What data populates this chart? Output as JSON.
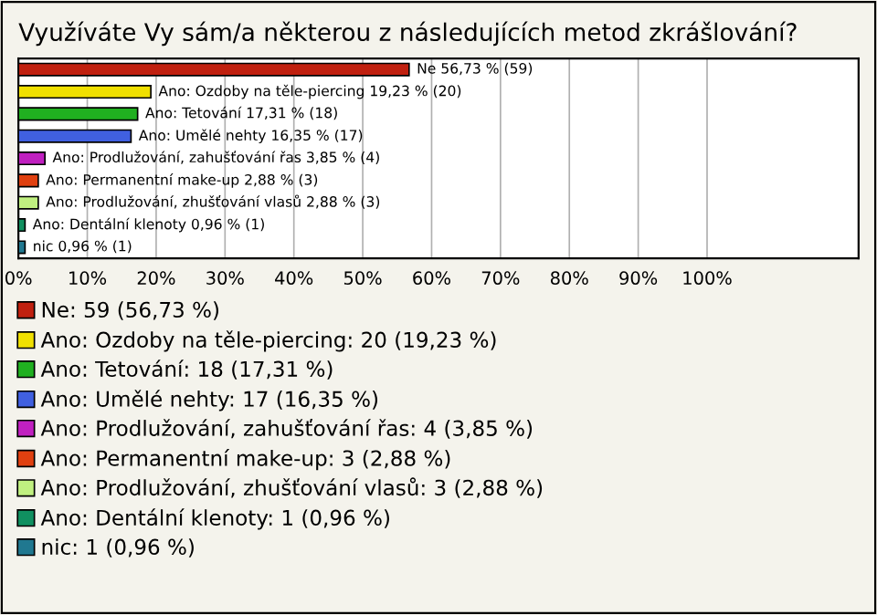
{
  "chart_data": {
    "type": "bar",
    "orientation": "horizontal",
    "title": "Využíváte Vy sám/a některou z následujících metod zkrášlování?",
    "categories": [
      null,
      null,
      null,
      null,
      null,
      null,
      null,
      null,
      null
    ],
    "series": [
      {
        "name": "Ne: 59 (56,73 %)",
        "color": "#c0200f",
        "values": [
          56.73,
          null,
          null,
          null,
          null,
          null,
          null,
          null,
          null
        ],
        "value_labels": [
          "Ne 56,73 % (59)",
          null,
          null,
          null,
          null,
          null,
          null,
          null,
          null
        ]
      },
      {
        "name": "Ano: Ozdoby na těle-piercing: 20 (19,23 %)",
        "color": "#f0e000",
        "values": [
          null,
          19.23,
          null,
          null,
          null,
          null,
          null,
          null,
          null
        ],
        "value_labels": [
          null,
          "Ano: Ozdoby na těle-piercing 19,23 % (20)",
          null,
          null,
          null,
          null,
          null,
          null,
          null
        ]
      },
      {
        "name": "Ano: Tetování: 18 (17,31 %)",
        "color": "#20b020",
        "values": [
          null,
          null,
          17.31,
          null,
          null,
          null,
          null,
          null,
          null
        ],
        "value_labels": [
          null,
          null,
          "Ano: Tetování 17,31 % (18)",
          null,
          null,
          null,
          null,
          null,
          null
        ]
      },
      {
        "name": "Ano: Umělé nehty: 17 (16,35 %)",
        "color": "#4060e0",
        "values": [
          null,
          null,
          null,
          16.35,
          null,
          null,
          null,
          null,
          null
        ],
        "value_labels": [
          null,
          null,
          null,
          "Ano: Umělé nehty 16,35 % (17)",
          null,
          null,
          null,
          null,
          null
        ]
      },
      {
        "name": "Ano: Prodlužování, zahušťování řas: 4 (3,85 %)",
        "color": "#c020c0",
        "values": [
          null,
          null,
          null,
          null,
          3.85,
          null,
          null,
          null,
          null
        ],
        "value_labels": [
          null,
          null,
          null,
          null,
          "Ano: Prodlužování, zahušťování řas 3,85 % (4)",
          null,
          null,
          null,
          null
        ]
      },
      {
        "name": "Ano: Permanentní make-up: 3 (2,88 %)",
        "color": "#e04010",
        "values": [
          null,
          null,
          null,
          null,
          null,
          2.88,
          null,
          null,
          null
        ],
        "value_labels": [
          null,
          null,
          null,
          null,
          null,
          "Ano: Permanentní make-up 2,88 % (3)",
          null,
          null,
          null
        ]
      },
      {
        "name": "Ano: Prodlužování, zhušťování vlasů: 3 (2,88 %)",
        "color": "#c0f080",
        "values": [
          null,
          null,
          null,
          null,
          null,
          null,
          2.88,
          null,
          null
        ],
        "value_labels": [
          null,
          null,
          null,
          null,
          null,
          null,
          "Ano: Prodlužování, zhušťování vlasů 2,88 % (3)",
          null,
          null
        ]
      },
      {
        "name": "Ano: Dentální klenoty: 1 (0,96 %)",
        "color": "#109060",
        "values": [
          null,
          null,
          null,
          null,
          null,
          null,
          null,
          0.96,
          null
        ],
        "value_labels": [
          null,
          null,
          null,
          null,
          null,
          null,
          null,
          "Ano: Dentální klenoty 0,96 % (1)",
          null
        ]
      },
      {
        "name": "nic: 1 (0,96 %)",
        "color": "#207890",
        "values": [
          null,
          null,
          null,
          null,
          null,
          null,
          null,
          null,
          0.96
        ],
        "value_labels": [
          null,
          null,
          null,
          null,
          null,
          null,
          null,
          null,
          "nic 0,96 % (1)"
        ]
      }
    ],
    "xlim": [
      0,
      122
    ],
    "xticks": [
      {
        "value": 0,
        "label": "0%"
      },
      {
        "value": 10,
        "label": "10%"
      },
      {
        "value": 20,
        "label": "20%"
      },
      {
        "value": 30,
        "label": "30%"
      },
      {
        "value": 40,
        "label": "40%"
      },
      {
        "value": 50,
        "label": "50%"
      },
      {
        "value": 60,
        "label": "60%"
      },
      {
        "value": 70,
        "label": "70%"
      },
      {
        "value": 80,
        "label": "80%"
      },
      {
        "value": 90,
        "label": "90%"
      },
      {
        "value": 100,
        "label": "100%"
      }
    ],
    "grid": "x",
    "legend": "bottom"
  }
}
